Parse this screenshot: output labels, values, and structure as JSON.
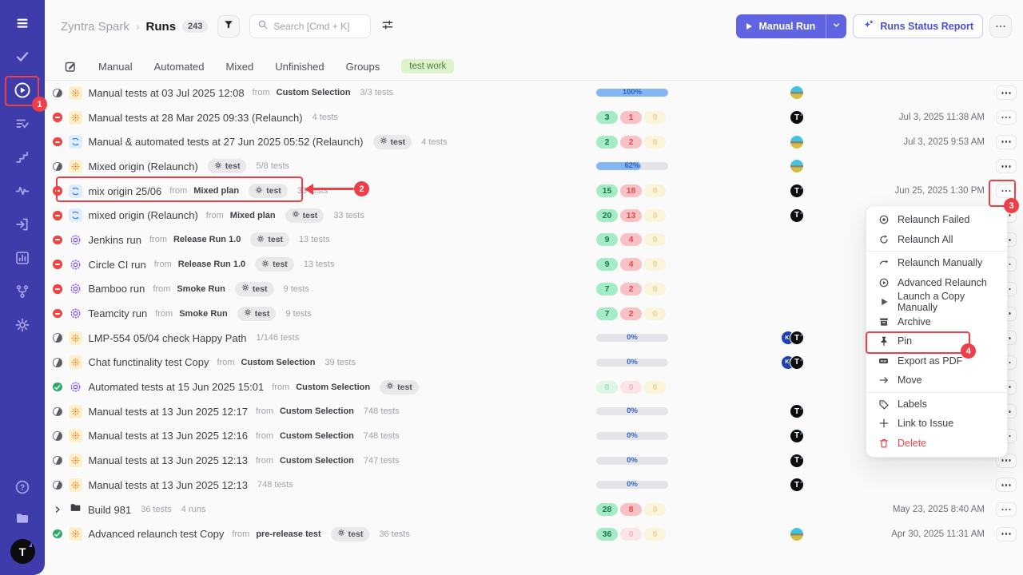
{
  "accent_color": "#6064e3",
  "annotation_color": "#ee3f49",
  "sidebar": {
    "items": [
      {
        "id": "menu"
      },
      {
        "id": "check"
      },
      {
        "id": "play",
        "active": true,
        "annotated": true
      },
      {
        "id": "list-check"
      },
      {
        "id": "steps"
      },
      {
        "id": "pulse"
      },
      {
        "id": "sign-in"
      },
      {
        "id": "bar-chart"
      },
      {
        "id": "branch"
      },
      {
        "id": "gear"
      }
    ],
    "bottom_items": [
      {
        "id": "help"
      },
      {
        "id": "docs"
      }
    ],
    "avatar_label": "T"
  },
  "header": {
    "breadcrumb": {
      "project": "Zyntra Spark",
      "separator": "›",
      "section": "Runs",
      "count": "243"
    },
    "search_placeholder": "Search [Cmd + K]",
    "manual_run_label": "Manual Run",
    "runs_status_report_label": "Runs Status Report"
  },
  "tabs": {
    "items": [
      "Manual",
      "Automated",
      "Mixed",
      "Unfinished",
      "Groups"
    ],
    "tag": "test work"
  },
  "runs": {
    "from_label": "from",
    "test_badge_label": "test",
    "rows": [
      {
        "status": "half",
        "type": "manual",
        "title": "Manual tests at 03 Jul 2025 12:08",
        "plan": "Custom Selection",
        "tests": "3/3 tests",
        "stat": {
          "kind": "progress",
          "pct": 100,
          "label": "100%"
        },
        "avatars": [
          "photo"
        ],
        "date": ""
      },
      {
        "status": "failed",
        "type": "manual",
        "title": "Manual tests at 28 Mar 2025 09:33 (Relaunch)",
        "tests": "4 tests",
        "stat": {
          "kind": "pills",
          "values": [
            3,
            1,
            0
          ]
        },
        "avatars": [
          "t"
        ],
        "date": "Jul 3, 2025 11:38 AM"
      },
      {
        "status": "failed",
        "type": "mixed",
        "title": "Manual & automated tests at 27 Jun 2025 05:52 (Relaunch)",
        "test_badge": true,
        "tests": "4 tests",
        "stat": {
          "kind": "pills",
          "values": [
            2,
            2,
            0
          ]
        },
        "avatars": [
          "photo"
        ],
        "date": "Jul 3, 2025 9:53 AM"
      },
      {
        "status": "half",
        "type": "manual",
        "title": "Mixed origin (Relaunch)",
        "test_badge": true,
        "tests": "5/8 tests",
        "stat": {
          "kind": "progress",
          "pct": 62,
          "label": "62%"
        },
        "avatars": [
          "photo"
        ],
        "date": ""
      },
      {
        "status": "failed",
        "type": "mixed",
        "title": "mix origin 25/06",
        "plan": "Mixed plan",
        "test_badge": true,
        "tests": "33 tests",
        "stat": {
          "kind": "pills",
          "values": [
            15,
            18,
            0
          ]
        },
        "avatars": [
          "t"
        ],
        "date": "Jun 25, 2025 1:30 PM",
        "annotated": true
      },
      {
        "status": "failed",
        "type": "mixed",
        "title": "mixed origin (Relaunch)",
        "plan": "Mixed plan",
        "test_badge": true,
        "tests": "33 tests",
        "stat": {
          "kind": "pills",
          "values": [
            20,
            13,
            0
          ]
        },
        "avatars": [
          "t"
        ],
        "date": ""
      },
      {
        "status": "failed",
        "type": "automated",
        "title": "Jenkins run",
        "plan": "Release Run 1.0",
        "test_badge": true,
        "tests": "13 tests",
        "stat": {
          "kind": "pills",
          "values": [
            9,
            4,
            0
          ]
        },
        "avatars": [],
        "date": ""
      },
      {
        "status": "failed",
        "type": "automated",
        "title": "Circle CI run",
        "plan": "Release Run 1.0",
        "test_badge": true,
        "tests": "13 tests",
        "stat": {
          "kind": "pills",
          "values": [
            9,
            4,
            0
          ]
        },
        "avatars": [],
        "date": ""
      },
      {
        "status": "failed",
        "type": "automated",
        "title": "Bamboo run",
        "plan": "Smoke Run",
        "test_badge": true,
        "tests": "9 tests",
        "stat": {
          "kind": "pills",
          "values": [
            7,
            2,
            0
          ]
        },
        "avatars": [],
        "date": ""
      },
      {
        "status": "failed",
        "type": "automated",
        "title": "Teamcity run",
        "plan": "Smoke Run",
        "test_badge": true,
        "tests": "9 tests",
        "stat": {
          "kind": "pills",
          "values": [
            7,
            2,
            0
          ]
        },
        "avatars": [],
        "date": ""
      },
      {
        "status": "half",
        "type": "manual",
        "title": "LMP-554 05/04 check Happy Path",
        "tests": "1/146 tests",
        "stat": {
          "kind": "progress",
          "pct": 0,
          "label": "0%"
        },
        "avatars": [
          "ki",
          "t"
        ],
        "date": ""
      },
      {
        "status": "half",
        "type": "manual",
        "title": "Chat functinality test Copy",
        "plan": "Custom Selection",
        "tests": "39 tests",
        "stat": {
          "kind": "progress",
          "pct": 0,
          "label": "0%"
        },
        "avatars": [
          "ki",
          "t"
        ],
        "date": ""
      },
      {
        "status": "passed",
        "type": "automated",
        "title": "Automated tests at 15 Jun 2025 15:01",
        "plan": "Custom Selection",
        "test_badge": true,
        "tests": "",
        "stat": {
          "kind": "pills",
          "values": [
            0,
            0,
            0
          ]
        },
        "avatars": [],
        "date": ""
      },
      {
        "status": "half",
        "type": "manual",
        "title": "Manual tests at 13 Jun 2025 12:17",
        "plan": "Custom Selection",
        "tests": "748 tests",
        "stat": {
          "kind": "progress",
          "pct": 0,
          "label": "0%"
        },
        "avatars": [
          "t"
        ],
        "date": ""
      },
      {
        "status": "half",
        "type": "manual",
        "title": "Manual tests at 13 Jun 2025 12:16",
        "plan": "Custom Selection",
        "tests": "748 tests",
        "stat": {
          "kind": "progress",
          "pct": 0,
          "label": "0%"
        },
        "avatars": [
          "t"
        ],
        "date": ""
      },
      {
        "status": "half",
        "type": "manual",
        "title": "Manual tests at 13 Jun 2025 12:13",
        "plan": "Custom Selection",
        "tests": "747 tests",
        "stat": {
          "kind": "progress",
          "pct": 0,
          "label": "0%"
        },
        "avatars": [
          "t"
        ],
        "date": ""
      },
      {
        "status": "half",
        "type": "manual",
        "title": "Manual tests at 13 Jun 2025 12:13",
        "tests": "748 tests",
        "stat": {
          "kind": "progress",
          "pct": 0,
          "label": "0%"
        },
        "avatars": [
          "t"
        ],
        "date": ""
      },
      {
        "group": true,
        "type": "folder",
        "title": "Build 981",
        "tests": "36 tests",
        "runs": "4 runs",
        "stat": {
          "kind": "pills",
          "values": [
            28,
            8,
            0
          ]
        },
        "avatars": [],
        "date": "May 23, 2025 8:40 AM"
      },
      {
        "status": "passed",
        "type": "manual",
        "title": "Advanced relaunch test Copy",
        "plan": "pre-release test",
        "test_badge": true,
        "tests": "36 tests",
        "stat": {
          "kind": "pills",
          "values": [
            36,
            0,
            0
          ]
        },
        "avatars": [
          "photo"
        ],
        "date": "Apr 30, 2025 11:31 AM"
      }
    ],
    "avatar_labels": {
      "t": "T",
      "ki": "KI"
    }
  },
  "context_menu": {
    "items": [
      {
        "icon": "relaunch-failed",
        "label": "Relaunch Failed"
      },
      {
        "icon": "relaunch-all",
        "label": "Relaunch All",
        "divider_after": true
      },
      {
        "icon": "relaunch-manually",
        "label": "Relaunch Manually"
      },
      {
        "icon": "advanced-relaunch",
        "label": "Advanced Relaunch"
      },
      {
        "icon": "launch-copy",
        "label": "Launch a Copy Manually"
      },
      {
        "icon": "archive",
        "label": "Archive"
      },
      {
        "icon": "pin",
        "label": "Pin",
        "annotated": true
      },
      {
        "icon": "export-pdf",
        "label": "Export as PDF"
      },
      {
        "icon": "move",
        "label": "Move",
        "divider_after": true
      },
      {
        "icon": "labels",
        "label": "Labels"
      },
      {
        "icon": "link-issue",
        "label": "Link to Issue"
      },
      {
        "icon": "delete",
        "label": "Delete",
        "danger": true
      }
    ]
  },
  "annotations": [
    "1",
    "2",
    "3",
    "4"
  ]
}
